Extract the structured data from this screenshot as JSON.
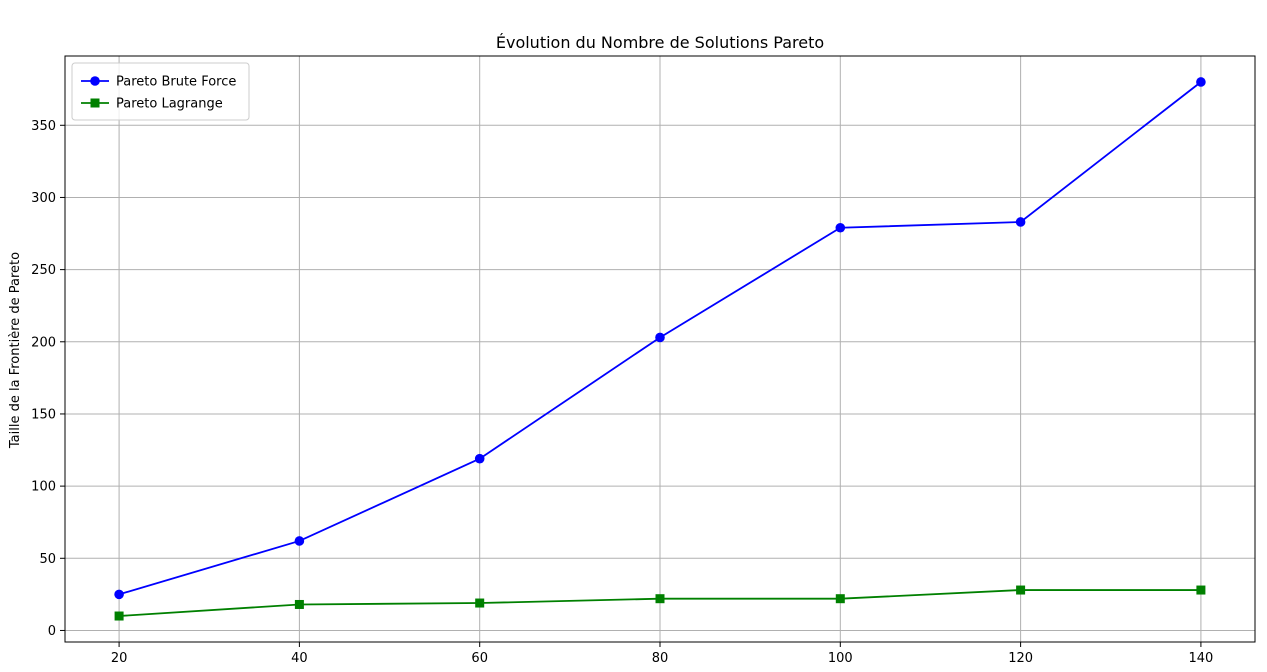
{
  "chart_data": {
    "type": "line",
    "title": "Évolution du Nombre de Solutions Pareto",
    "xlabel": "",
    "ylabel": "Taille de la Frontière de Pareto",
    "x": [
      20,
      40,
      60,
      80,
      100,
      120,
      140
    ],
    "x_ticks": [
      "20",
      "40",
      "60",
      "80",
      "100",
      "120",
      "140"
    ],
    "y_ticks": [
      "0",
      "50",
      "100",
      "150",
      "200",
      "250",
      "300",
      "350"
    ],
    "xlim": [
      14,
      146
    ],
    "ylim": [
      -8,
      398
    ],
    "grid": true,
    "legend_position": "top-left",
    "series": [
      {
        "name": "Pareto Brute Force",
        "values": [
          25,
          62,
          119,
          203,
          279,
          283,
          380
        ],
        "color": "#0000ff",
        "marker": "circle"
      },
      {
        "name": "Pareto Lagrange",
        "values": [
          10,
          18,
          19,
          22,
          22,
          28,
          28
        ],
        "color": "#008000",
        "marker": "square"
      }
    ]
  }
}
